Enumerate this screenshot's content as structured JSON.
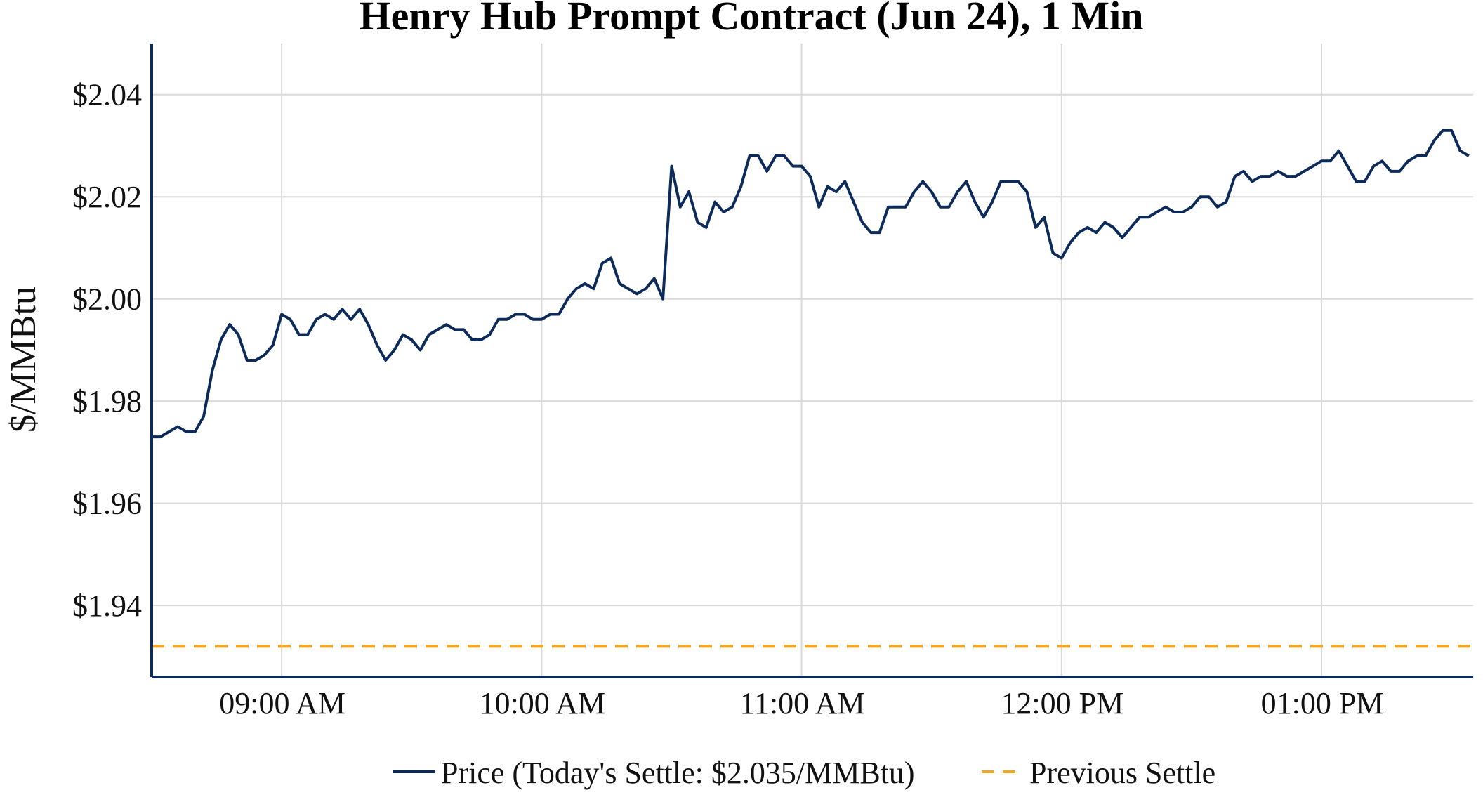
{
  "chart_data": {
    "type": "line",
    "title": "Henry Hub Prompt Contract (Jun 24), 1 Min",
    "xlabel": "",
    "ylabel": "$/MMBtu",
    "ylim": [
      1.926,
      2.05
    ],
    "y_ticks": [
      "$1.94",
      "$1.96",
      "$1.98",
      "$2.00",
      "$2.02",
      "$2.04"
    ],
    "x_ticks": [
      "09:00 AM",
      "10:00 AM",
      "11:00 AM",
      "12:00 PM",
      "01:00 PM"
    ],
    "x_unit": "minutes_since_0830",
    "xlim": [
      0,
      305
    ],
    "grid": true,
    "legend_position": "bottom",
    "series": [
      {
        "name": "Price (Today's Settle: $2.035/MMBtu)",
        "color": "#0d2b5a",
        "style": "solid",
        "points": [
          [
            0,
            1.973
          ],
          [
            2,
            1.973
          ],
          [
            4,
            1.974
          ],
          [
            6,
            1.975
          ],
          [
            8,
            1.974
          ],
          [
            10,
            1.974
          ],
          [
            12,
            1.977
          ],
          [
            14,
            1.986
          ],
          [
            16,
            1.992
          ],
          [
            18,
            1.995
          ],
          [
            20,
            1.993
          ],
          [
            22,
            1.988
          ],
          [
            24,
            1.988
          ],
          [
            26,
            1.989
          ],
          [
            28,
            1.991
          ],
          [
            30,
            1.997
          ],
          [
            32,
            1.996
          ],
          [
            34,
            1.993
          ],
          [
            36,
            1.993
          ],
          [
            38,
            1.996
          ],
          [
            40,
            1.997
          ],
          [
            42,
            1.996
          ],
          [
            44,
            1.998
          ],
          [
            46,
            1.996
          ],
          [
            48,
            1.998
          ],
          [
            50,
            1.995
          ],
          [
            52,
            1.991
          ],
          [
            54,
            1.988
          ],
          [
            56,
            1.99
          ],
          [
            58,
            1.993
          ],
          [
            60,
            1.992
          ],
          [
            62,
            1.99
          ],
          [
            64,
            1.993
          ],
          [
            66,
            1.994
          ],
          [
            68,
            1.995
          ],
          [
            70,
            1.994
          ],
          [
            72,
            1.994
          ],
          [
            74,
            1.992
          ],
          [
            76,
            1.992
          ],
          [
            78,
            1.993
          ],
          [
            80,
            1.996
          ],
          [
            82,
            1.996
          ],
          [
            84,
            1.997
          ],
          [
            86,
            1.997
          ],
          [
            88,
            1.996
          ],
          [
            90,
            1.996
          ],
          [
            92,
            1.997
          ],
          [
            94,
            1.997
          ],
          [
            96,
            2.0
          ],
          [
            98,
            2.002
          ],
          [
            100,
            2.003
          ],
          [
            102,
            2.002
          ],
          [
            104,
            2.007
          ],
          [
            106,
            2.008
          ],
          [
            108,
            2.003
          ],
          [
            110,
            2.002
          ],
          [
            112,
            2.001
          ],
          [
            114,
            2.002
          ],
          [
            116,
            2.004
          ],
          [
            118,
            2.0
          ],
          [
            120,
            2.026
          ],
          [
            122,
            2.018
          ],
          [
            124,
            2.021
          ],
          [
            126,
            2.015
          ],
          [
            128,
            2.014
          ],
          [
            130,
            2.019
          ],
          [
            132,
            2.017
          ],
          [
            134,
            2.018
          ],
          [
            136,
            2.022
          ],
          [
            138,
            2.028
          ],
          [
            140,
            2.028
          ],
          [
            142,
            2.025
          ],
          [
            144,
            2.028
          ],
          [
            146,
            2.028
          ],
          [
            148,
            2.026
          ],
          [
            150,
            2.026
          ],
          [
            152,
            2.024
          ],
          [
            154,
            2.018
          ],
          [
            156,
            2.022
          ],
          [
            158,
            2.021
          ],
          [
            160,
            2.023
          ],
          [
            162,
            2.019
          ],
          [
            164,
            2.015
          ],
          [
            166,
            2.013
          ],
          [
            168,
            2.013
          ],
          [
            170,
            2.018
          ],
          [
            172,
            2.018
          ],
          [
            174,
            2.018
          ],
          [
            176,
            2.021
          ],
          [
            178,
            2.023
          ],
          [
            180,
            2.021
          ],
          [
            182,
            2.018
          ],
          [
            184,
            2.018
          ],
          [
            186,
            2.021
          ],
          [
            188,
            2.023
          ],
          [
            190,
            2.019
          ],
          [
            192,
            2.016
          ],
          [
            194,
            2.019
          ],
          [
            196,
            2.023
          ],
          [
            198,
            2.023
          ],
          [
            200,
            2.023
          ],
          [
            202,
            2.021
          ],
          [
            204,
            2.014
          ],
          [
            206,
            2.016
          ],
          [
            208,
            2.009
          ],
          [
            210,
            2.008
          ],
          [
            212,
            2.011
          ],
          [
            214,
            2.013
          ],
          [
            216,
            2.014
          ],
          [
            218,
            2.013
          ],
          [
            220,
            2.015
          ],
          [
            222,
            2.014
          ],
          [
            224,
            2.012
          ],
          [
            226,
            2.014
          ],
          [
            228,
            2.016
          ],
          [
            230,
            2.016
          ],
          [
            232,
            2.017
          ],
          [
            234,
            2.018
          ],
          [
            236,
            2.017
          ],
          [
            238,
            2.017
          ],
          [
            240,
            2.018
          ],
          [
            242,
            2.02
          ],
          [
            244,
            2.02
          ],
          [
            246,
            2.018
          ],
          [
            248,
            2.019
          ],
          [
            250,
            2.024
          ],
          [
            252,
            2.025
          ],
          [
            254,
            2.023
          ],
          [
            256,
            2.024
          ],
          [
            258,
            2.024
          ],
          [
            260,
            2.025
          ],
          [
            262,
            2.024
          ],
          [
            264,
            2.024
          ],
          [
            266,
            2.025
          ],
          [
            268,
            2.026
          ],
          [
            270,
            2.027
          ],
          [
            272,
            2.027
          ],
          [
            274,
            2.029
          ],
          [
            276,
            2.026
          ],
          [
            278,
            2.023
          ],
          [
            280,
            2.023
          ],
          [
            282,
            2.026
          ],
          [
            284,
            2.027
          ],
          [
            286,
            2.025
          ],
          [
            288,
            2.025
          ],
          [
            290,
            2.027
          ],
          [
            292,
            2.028
          ],
          [
            294,
            2.028
          ],
          [
            296,
            2.031
          ],
          [
            298,
            2.033
          ],
          [
            300,
            2.033
          ],
          [
            302,
            2.029
          ],
          [
            304,
            2.028
          ]
        ]
      },
      {
        "name": "Previous Settle",
        "color": "#f5a623",
        "style": "dashed",
        "value": 1.932
      }
    ]
  }
}
